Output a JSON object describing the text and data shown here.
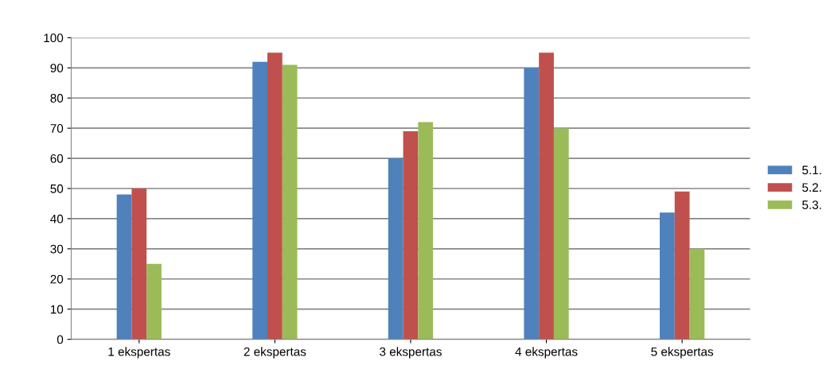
{
  "chart_data": {
    "type": "bar",
    "categories": [
      "1 ekspertas",
      "2 ekspertas",
      "3 ekspertas",
      "4 ekspertas",
      "5 ekspertas"
    ],
    "series": [
      {
        "name": "5.1.",
        "color": "#4f81bd",
        "values": [
          48,
          92,
          60,
          90,
          42
        ]
      },
      {
        "name": "5.2.",
        "color": "#c0504d",
        "values": [
          50,
          95,
          69,
          95,
          49
        ]
      },
      {
        "name": "5.3.",
        "color": "#9bbb59",
        "values": [
          25,
          91,
          72,
          70,
          30
        ]
      }
    ],
    "ylim": [
      0,
      100
    ],
    "yticks": [
      0,
      10,
      20,
      30,
      40,
      50,
      60,
      70,
      80,
      90,
      100
    ],
    "grid": "y",
    "legend": "right"
  }
}
